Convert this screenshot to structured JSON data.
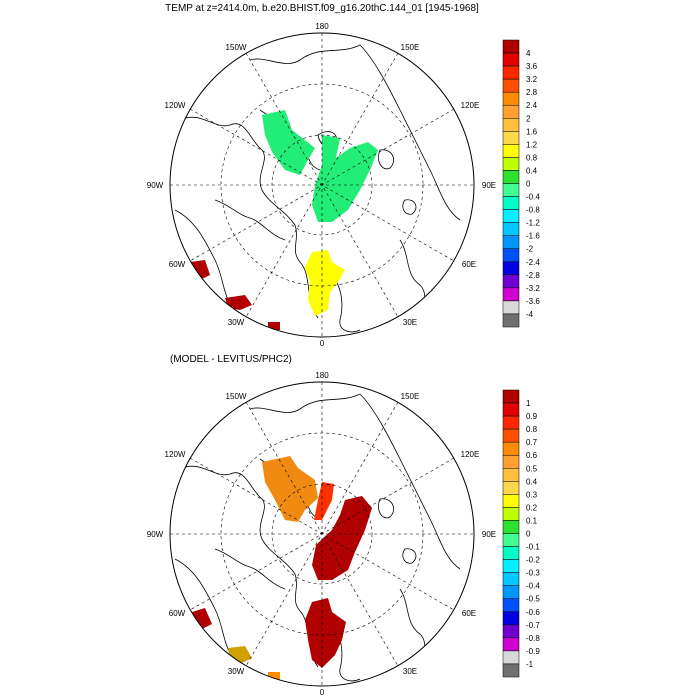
{
  "panels": [
    {
      "title": "TEMP at z=2414.0m, b.e20.BHIST.f09_g16.20thC.144_01 [1945-1968]",
      "lon_labels": {
        "top": "180",
        "top_left": "150W",
        "top_right": "150E",
        "left_upper": "120W",
        "right_upper": "120E",
        "left": "90W",
        "right": "90E",
        "left_lower": "60W",
        "right_lower": "60E",
        "bottom_left": "30W",
        "bottom_right": "30E",
        "bottom": "0"
      },
      "colorbar": {
        "labels": [
          "4",
          "3.6",
          "3.2",
          "2.8",
          "2.4",
          "2",
          "1.6",
          "1.2",
          "0.8",
          "0.4",
          "0",
          "-0.4",
          "-0.8",
          "-1.2",
          "-1.6",
          "-2",
          "-2.4",
          "-2.8",
          "-3.2",
          "-3.6",
          "-4"
        ],
        "colors": [
          "#b00000",
          "#e00000",
          "#ff2800",
          "#ff5000",
          "#ff8c00",
          "#ffa030",
          "#ffbe3c",
          "#ffd84a",
          "#ffff00",
          "#c0ff00",
          "#30e030",
          "#40ff90",
          "#00ffc8",
          "#00f0ff",
          "#00c8ff",
          "#0096ff",
          "#0050ff",
          "#0000e0",
          "#7000d0",
          "#d000d0",
          "#d8d8d8",
          "#707070"
        ]
      },
      "regions": {
        "pacific_blob_color": "#22ee77",
        "atlantic_blob_color": "#ffff00",
        "sw_patch_color": "#b00000"
      }
    },
    {
      "title": "(MODEL - LEVITUS/PHC2)",
      "lon_labels": {
        "top": "180",
        "top_left": "150W",
        "top_right": "150E",
        "left_upper": "120W",
        "right_upper": "120E",
        "left": "90W",
        "right": "90E",
        "left_lower": "60W",
        "right_lower": "60E",
        "bottom_left": "30W",
        "bottom_right": "30E",
        "bottom": "0"
      },
      "colorbar": {
        "labels": [
          "1",
          "0.9",
          "0.8",
          "0.7",
          "0.6",
          "0.5",
          "0.4",
          "0.3",
          "0.2",
          "0.1",
          "0",
          "-0.1",
          "-0.2",
          "-0.3",
          "-0.4",
          "-0.5",
          "-0.6",
          "-0.7",
          "-0.8",
          "-0.9",
          "-1"
        ],
        "colors": [
          "#b00000",
          "#e00000",
          "#ff2800",
          "#ff5000",
          "#ff8c00",
          "#ffa030",
          "#ffbe3c",
          "#ffd84a",
          "#ffff00",
          "#c0ff00",
          "#30e030",
          "#40ff90",
          "#00ffc8",
          "#00f0ff",
          "#00c8ff",
          "#0096ff",
          "#0050ff",
          "#0000e0",
          "#7000d0",
          "#d000d0",
          "#d8d8d8",
          "#707070"
        ]
      },
      "regions": {
        "pacific_blob_color": "#f08a10",
        "atlantic_blob_color": "#b00000",
        "sw_patch_color": "#b00000"
      }
    }
  ]
}
